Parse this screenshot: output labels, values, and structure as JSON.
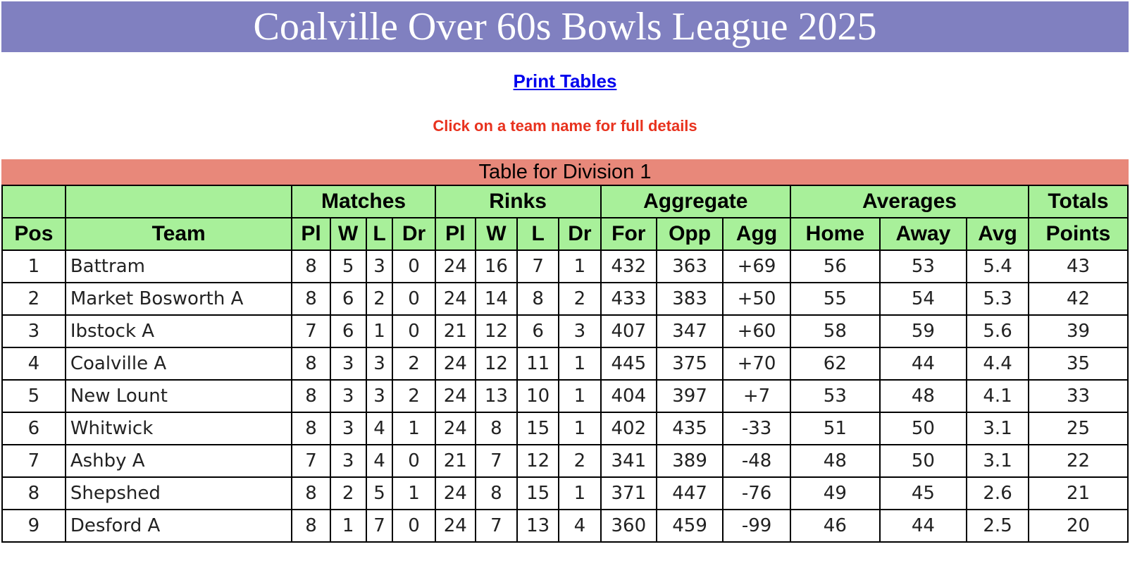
{
  "banner": {
    "title": "Coalville Over 60s Bowls League 2025"
  },
  "links": {
    "print_tables": "Print Tables"
  },
  "hint": "Click on a team name for full details",
  "division": {
    "title": "Table for Division 1",
    "group_headers": [
      "",
      "",
      "Matches",
      "Rinks",
      "Aggregate",
      "Averages",
      "Totals"
    ],
    "column_headers": [
      "Pos",
      "Team",
      "Pl",
      "W",
      "L",
      "Dr",
      "Pl",
      "W",
      "L",
      "Dr",
      "For",
      "Opp",
      "Agg",
      "Home",
      "Away",
      "Avg",
      "Points"
    ],
    "rows": [
      [
        "1",
        "Battram",
        "8",
        "5",
        "3",
        "0",
        "24",
        "16",
        "7",
        "1",
        "432",
        "363",
        "+69",
        "56",
        "53",
        "5.4",
        "43"
      ],
      [
        "2",
        "Market Bosworth A",
        "8",
        "6",
        "2",
        "0",
        "24",
        "14",
        "8",
        "2",
        "433",
        "383",
        "+50",
        "55",
        "54",
        "5.3",
        "42"
      ],
      [
        "3",
        "Ibstock A",
        "7",
        "6",
        "1",
        "0",
        "21",
        "12",
        "6",
        "3",
        "407",
        "347",
        "+60",
        "58",
        "59",
        "5.6",
        "39"
      ],
      [
        "4",
        "Coalville A",
        "8",
        "3",
        "3",
        "2",
        "24",
        "12",
        "11",
        "1",
        "445",
        "375",
        "+70",
        "62",
        "44",
        "4.4",
        "35"
      ],
      [
        "5",
        "New Lount",
        "8",
        "3",
        "3",
        "2",
        "24",
        "13",
        "10",
        "1",
        "404",
        "397",
        "+7",
        "53",
        "48",
        "4.1",
        "33"
      ],
      [
        "6",
        "Whitwick",
        "8",
        "3",
        "4",
        "1",
        "24",
        "8",
        "15",
        "1",
        "402",
        "435",
        "-33",
        "51",
        "50",
        "3.1",
        "25"
      ],
      [
        "7",
        "Ashby A",
        "7",
        "3",
        "4",
        "0",
        "21",
        "7",
        "12",
        "2",
        "341",
        "389",
        "-48",
        "48",
        "50",
        "3.1",
        "22"
      ],
      [
        "8",
        "Shepshed",
        "8",
        "2",
        "5",
        "1",
        "24",
        "8",
        "15",
        "1",
        "371",
        "447",
        "-76",
        "49",
        "45",
        "2.6",
        "21"
      ],
      [
        "9",
        "Desford A",
        "8",
        "1",
        "7",
        "0",
        "24",
        "7",
        "13",
        "4",
        "360",
        "459",
        "-99",
        "46",
        "44",
        "2.5",
        "20"
      ]
    ]
  },
  "colors": {
    "banner_bg": "#8080c0",
    "division_bg": "#e8887a",
    "header_bg": "#a8f09a",
    "hint_text": "#e8321e",
    "link_text": "#0000ee"
  }
}
